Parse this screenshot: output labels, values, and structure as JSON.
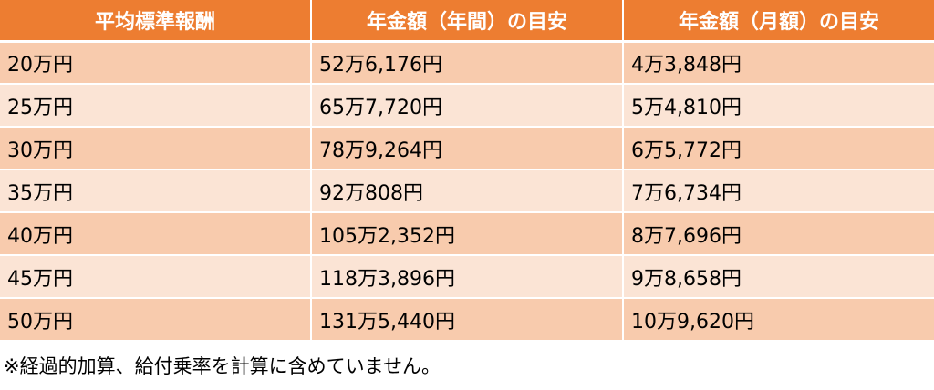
{
  "table": {
    "headers": [
      "平均標準報酬",
      "年金額（年間）の目安",
      "年金額（月額）の目安"
    ],
    "rows": [
      [
        "20万円",
        "52万6,176円",
        "4万3,848円"
      ],
      [
        "25万円",
        "65万7,720円",
        "5万4,810円"
      ],
      [
        "30万円",
        "78万9,264円",
        "6万5,772円"
      ],
      [
        "35万円",
        "92万808円",
        "7万6,734円"
      ],
      [
        "40万円",
        "105万2,352円",
        "8万7,696円"
      ],
      [
        "45万円",
        "118万3,896円",
        "9万8,658円"
      ],
      [
        "50万円",
        "131万5,440円",
        "10万9,620円"
      ]
    ]
  },
  "footnote": "※経過的加算、給付乗率を計算に含めていません。",
  "colors": {
    "header": "#ed7d31",
    "row_dark": "#f8cbad",
    "row_light": "#fbe4d5"
  }
}
